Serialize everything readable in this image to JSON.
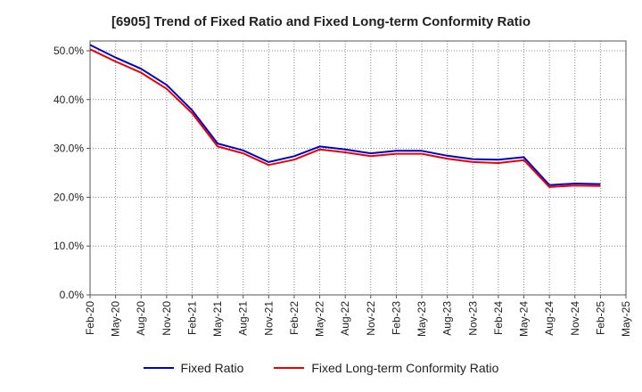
{
  "chart_data": {
    "type": "line",
    "title": "[6905]  Trend of Fixed Ratio and Fixed Long-term Conformity Ratio",
    "xlabel": "",
    "ylabel": "",
    "ylim": [
      0,
      52
    ],
    "yticks": [
      0,
      10,
      20,
      30,
      40,
      50
    ],
    "ytick_labels": [
      "0.0%",
      "10.0%",
      "20.0%",
      "30.0%",
      "40.0%",
      "50.0%"
    ],
    "xtick_labels": [
      "Feb-20",
      "May-20",
      "Aug-20",
      "Nov-20",
      "Feb-21",
      "May-21",
      "Aug-21",
      "Nov-21",
      "Feb-22",
      "May-22",
      "Aug-22",
      "Nov-22",
      "Feb-23",
      "May-23",
      "Aug-23",
      "Nov-23",
      "Feb-24",
      "May-24",
      "Aug-24",
      "Nov-24",
      "Feb-25",
      "May-25"
    ],
    "grid": true,
    "legend_position": "bottom",
    "series": [
      {
        "name": "Fixed Ratio",
        "color": "#0000cc",
        "values": [
          51.2,
          48.6,
          46.3,
          43.0,
          37.8,
          31.0,
          29.6,
          27.2,
          28.4,
          30.4,
          29.8,
          29.0,
          29.5,
          29.5,
          28.5,
          27.8,
          27.7,
          28.2,
          22.5,
          22.8,
          22.7
        ]
      },
      {
        "name": "Fixed Long-term Conformity Ratio",
        "color": "#ee0000",
        "values": [
          50.3,
          47.8,
          45.5,
          42.2,
          37.2,
          30.4,
          29.0,
          26.6,
          27.7,
          29.8,
          29.2,
          28.4,
          28.9,
          28.9,
          27.9,
          27.2,
          27.0,
          27.6,
          22.1,
          22.4,
          22.3
        ]
      }
    ]
  }
}
